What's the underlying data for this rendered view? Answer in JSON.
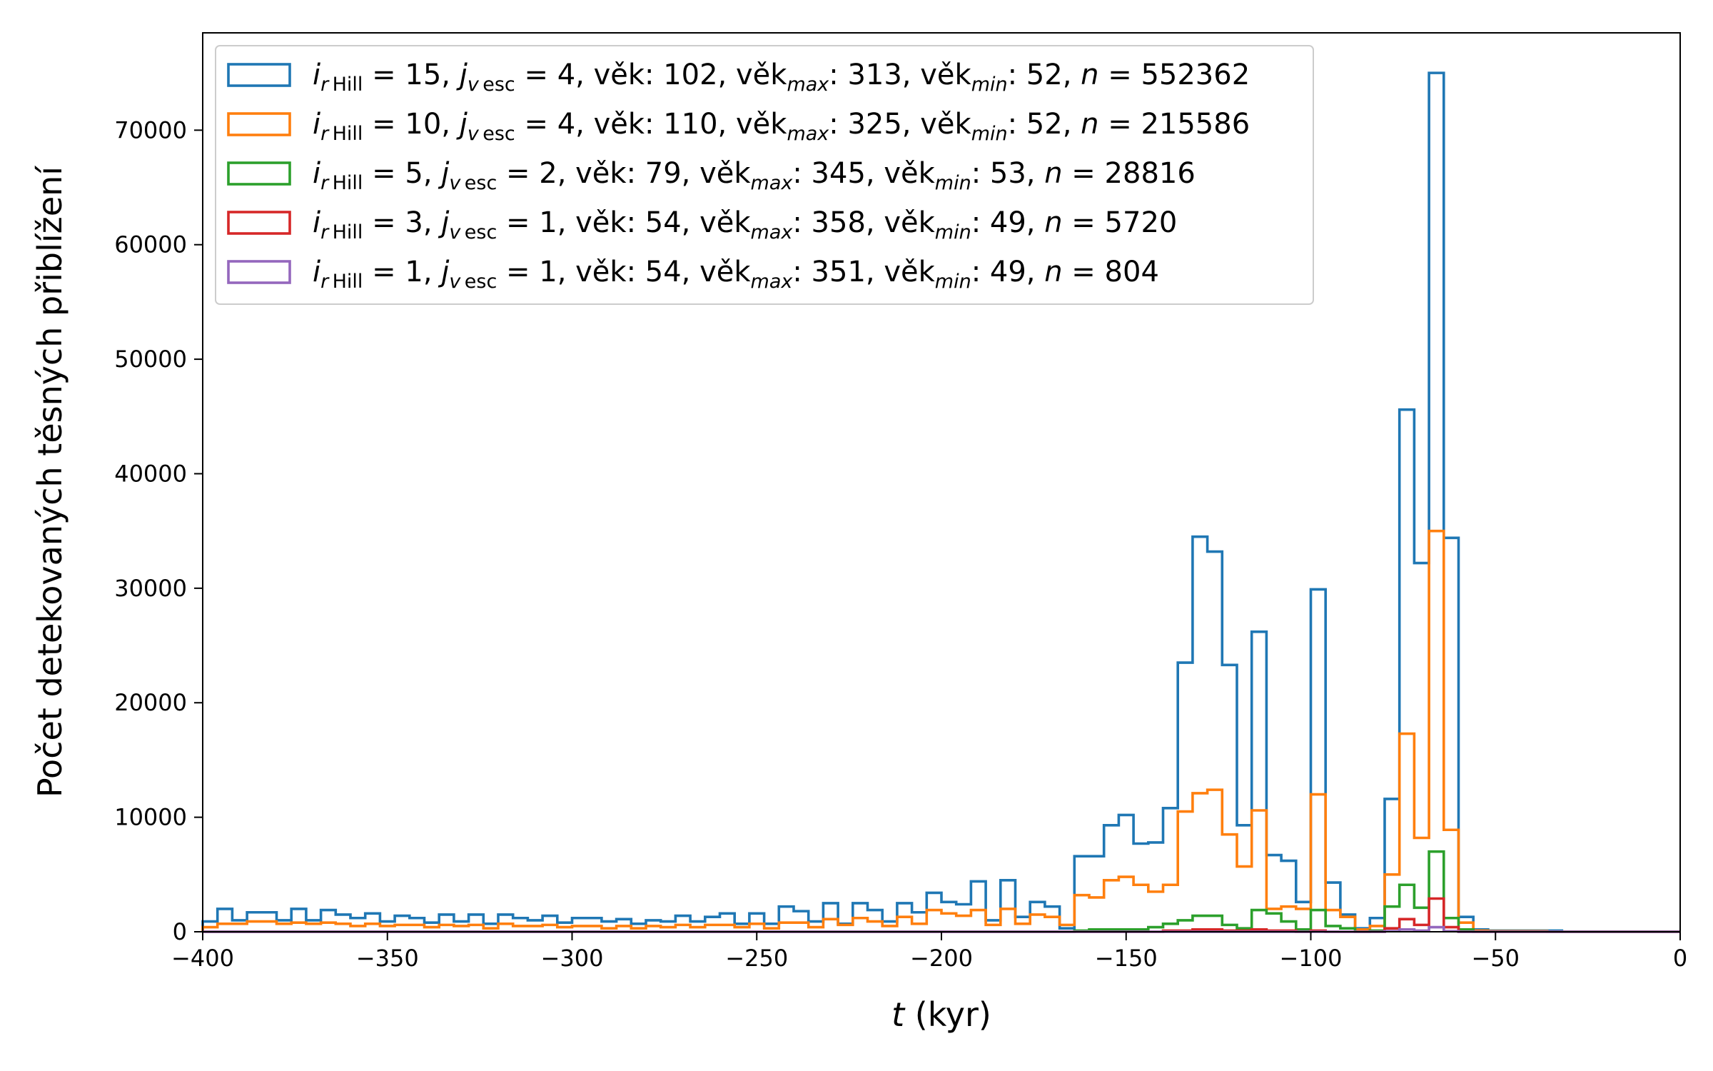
{
  "chart_data": {
    "type": "histogram-step",
    "xlabel_var": "t",
    "xlabel_unit": " (kyr)",
    "ylabel": "Počet detekovaných těsných přiblížení",
    "xlim": [
      -400,
      0
    ],
    "ylim": [
      0,
      78500
    ],
    "xticks": [
      -400,
      -350,
      -300,
      -250,
      -200,
      -150,
      -100,
      -50,
      0
    ],
    "xtick_labels": [
      "−400",
      "−350",
      "−300",
      "−250",
      "−200",
      "−150",
      "−100",
      "−50",
      "0"
    ],
    "yticks": [
      0,
      10000,
      20000,
      30000,
      40000,
      50000,
      60000,
      70000
    ],
    "ytick_labels": [
      "0",
      "10000",
      "20000",
      "30000",
      "40000",
      "50000",
      "60000",
      "70000"
    ],
    "bin_start": -400,
    "bin_width": 4,
    "grid": false,
    "legend_position": "top-left",
    "series": [
      {
        "name": "i_rHill = 15, j_vesc = 4, věk: 102, věk_max: 313, věk_min: 52, n = 552362",
        "color": "#1f77b4",
        "legend": {
          "i": "15",
          "j": "4",
          "vek": "102",
          "vek_max": "313",
          "vek_min": "52",
          "n": "552362"
        },
        "values": [
          900,
          2000,
          1000,
          1700,
          1700,
          1000,
          2000,
          1000,
          1900,
          1500,
          1200,
          1600,
          900,
          1400,
          1200,
          800,
          1500,
          900,
          1500,
          700,
          1500,
          1200,
          1000,
          1400,
          800,
          1200,
          1200,
          900,
          1100,
          700,
          1000,
          900,
          1400,
          900,
          1300,
          1600,
          700,
          1600,
          700,
          2200,
          1800,
          900,
          2500,
          700,
          2500,
          1900,
          900,
          2500,
          1700,
          3400,
          2600,
          2400,
          4400,
          1000,
          4500,
          1300,
          2600,
          2200,
          300,
          6600,
          6600,
          9300,
          10200,
          7700,
          7800,
          10800,
          23500,
          34500,
          33200,
          23300,
          9300,
          26200,
          6700,
          6200,
          2600,
          29900,
          4300,
          1500,
          300,
          1200,
          11600,
          45600,
          32200,
          75000,
          34400,
          1300,
          200,
          100,
          100,
          100,
          100,
          100,
          0,
          0,
          0,
          0,
          0,
          0,
          0,
          0
        ]
      },
      {
        "name": "i_rHill = 10, j_vesc = 4, věk: 110, věk_max: 325, věk_min: 52, n = 215586",
        "color": "#ff7f0e",
        "legend": {
          "i": "10",
          "j": "4",
          "vek": "110",
          "vek_max": "325",
          "vek_min": "52",
          "n": "215586"
        },
        "values": [
          400,
          700,
          700,
          900,
          900,
          700,
          800,
          700,
          800,
          700,
          500,
          700,
          500,
          600,
          600,
          400,
          600,
          500,
          600,
          300,
          700,
          500,
          500,
          600,
          400,
          500,
          500,
          300,
          500,
          300,
          500,
          400,
          600,
          400,
          600,
          600,
          400,
          700,
          300,
          800,
          800,
          400,
          1100,
          600,
          1200,
          900,
          500,
          1300,
          700,
          1900,
          1600,
          1400,
          1900,
          600,
          2000,
          700,
          1500,
          1300,
          600,
          3200,
          3000,
          4500,
          4800,
          4100,
          3500,
          4100,
          10500,
          12100,
          12400,
          8500,
          5700,
          10600,
          2000,
          2200,
          2000,
          12000,
          1900,
          1300,
          200,
          500,
          5000,
          17300,
          8200,
          35000,
          8900,
          800,
          100,
          50,
          50,
          50,
          50,
          0,
          0,
          0,
          0,
          0,
          0,
          0,
          0,
          0
        ]
      },
      {
        "name": "i_rHill = 5, j_vesc = 2, věk: 79, věk_max: 345, věk_min: 53, n = 28816",
        "color": "#2ca02c",
        "legend": {
          "i": " 5",
          "j": "2",
          "vek": " 79",
          "vek_max": "345",
          "vek_min": "53",
          "n": "28816"
        },
        "values": [
          0,
          0,
          0,
          0,
          0,
          0,
          0,
          0,
          0,
          0,
          0,
          0,
          0,
          0,
          0,
          0,
          0,
          0,
          0,
          0,
          0,
          0,
          0,
          0,
          0,
          0,
          0,
          0,
          0,
          0,
          0,
          0,
          0,
          0,
          0,
          0,
          0,
          0,
          0,
          0,
          0,
          0,
          0,
          0,
          0,
          0,
          0,
          0,
          0,
          0,
          0,
          0,
          0,
          0,
          0,
          0,
          0,
          0,
          0,
          100,
          200,
          200,
          200,
          200,
          400,
          700,
          1000,
          1400,
          1400,
          600,
          300,
          1900,
          1600,
          900,
          200,
          1900,
          500,
          300,
          0,
          100,
          2200,
          4100,
          2100,
          7000,
          1200,
          200,
          0,
          0,
          0,
          0,
          0,
          0,
          0,
          0,
          0,
          0,
          0,
          0,
          0,
          0
        ]
      },
      {
        "name": "i_rHill = 3, j_vesc = 1, věk: 54, věk_max: 358, věk_min: 49, n = 5720",
        "color": "#d62728",
        "legend": {
          "i": " 3",
          "j": "1",
          "vek": " 54",
          "vek_max": "358",
          "vek_min": "49",
          "n": "5720"
        },
        "values": [
          0,
          0,
          0,
          0,
          0,
          0,
          0,
          0,
          0,
          0,
          0,
          0,
          0,
          0,
          0,
          0,
          0,
          0,
          0,
          0,
          0,
          0,
          0,
          0,
          0,
          0,
          0,
          0,
          0,
          0,
          0,
          0,
          0,
          0,
          0,
          0,
          0,
          0,
          0,
          0,
          0,
          0,
          0,
          0,
          0,
          0,
          0,
          0,
          0,
          0,
          0,
          0,
          0,
          0,
          0,
          0,
          0,
          0,
          0,
          0,
          0,
          0,
          0,
          0,
          0,
          100,
          100,
          200,
          200,
          100,
          100,
          200,
          100,
          100,
          0,
          100,
          0,
          0,
          0,
          0,
          300,
          1100,
          600,
          2900,
          400,
          0,
          0,
          0,
          0,
          0,
          0,
          0,
          0,
          0,
          0,
          0,
          0,
          0,
          0,
          0
        ]
      },
      {
        "name": "i_rHill = 1, j_vesc = 1, věk: 54, věk_max: 351, věk_min: 49, n = 804",
        "color": "#9467bd",
        "legend": {
          "i": " 1",
          "j": "1",
          "vek": " 54",
          "vek_max": "351",
          "vek_min": "49",
          "n": "804"
        },
        "values": [
          0,
          0,
          0,
          0,
          0,
          0,
          0,
          0,
          0,
          0,
          0,
          0,
          0,
          0,
          0,
          0,
          0,
          0,
          0,
          0,
          0,
          0,
          0,
          0,
          0,
          0,
          0,
          0,
          0,
          0,
          0,
          0,
          0,
          0,
          0,
          0,
          0,
          0,
          0,
          0,
          0,
          0,
          0,
          0,
          0,
          0,
          0,
          0,
          0,
          0,
          0,
          0,
          0,
          0,
          0,
          0,
          0,
          0,
          0,
          0,
          0,
          0,
          0,
          0,
          0,
          0,
          0,
          0,
          0,
          0,
          0,
          0,
          0,
          0,
          0,
          0,
          0,
          0,
          0,
          0,
          50,
          200,
          100,
          400,
          50,
          0,
          0,
          0,
          0,
          0,
          0,
          0,
          0,
          0,
          0,
          0,
          0,
          0,
          0,
          0
        ]
      }
    ]
  }
}
